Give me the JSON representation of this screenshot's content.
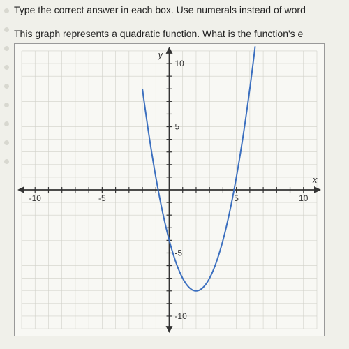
{
  "instructions": {
    "line1": "Type the correct answer in each box. Use numerals instead of word",
    "line2": "This graph represents a quadratic function. What is the function's e"
  },
  "chart": {
    "type": "line",
    "background_color": "#f8f8f4",
    "grid_color": "#d0d0c8",
    "axis_color": "#333333",
    "curve_color": "#3b6fbf",
    "xlim": [
      -11,
      11
    ],
    "ylim": [
      -11,
      11
    ],
    "xtick_step": 1,
    "ytick_step": 1,
    "x_labels": [
      -10,
      -5,
      5,
      10
    ],
    "y_labels": [
      -10,
      -5,
      5,
      10
    ],
    "axis_label_x": "x",
    "axis_label_y": "y",
    "label_fontsize": 13,
    "tick_fontsize": 12,
    "curve": {
      "equation": "x^2 - 4x - 4",
      "vertex": [
        2,
        -8
      ],
      "points": [
        [
          -1.5,
          4.25
        ],
        [
          -1,
          1
        ],
        [
          -0.5,
          -1.75
        ],
        [
          0,
          -4
        ],
        [
          0.5,
          -5.75
        ],
        [
          1,
          -7
        ],
        [
          1.5,
          -7.75
        ],
        [
          2,
          -8
        ],
        [
          2.5,
          -7.75
        ],
        [
          3,
          -7
        ],
        [
          3.5,
          -5.75
        ],
        [
          4,
          -4
        ],
        [
          4.5,
          -1.75
        ],
        [
          5,
          1
        ],
        [
          5.5,
          4.25
        ],
        [
          6,
          8
        ],
        [
          6.3,
          10.5
        ]
      ],
      "stroke_width": 2
    }
  }
}
